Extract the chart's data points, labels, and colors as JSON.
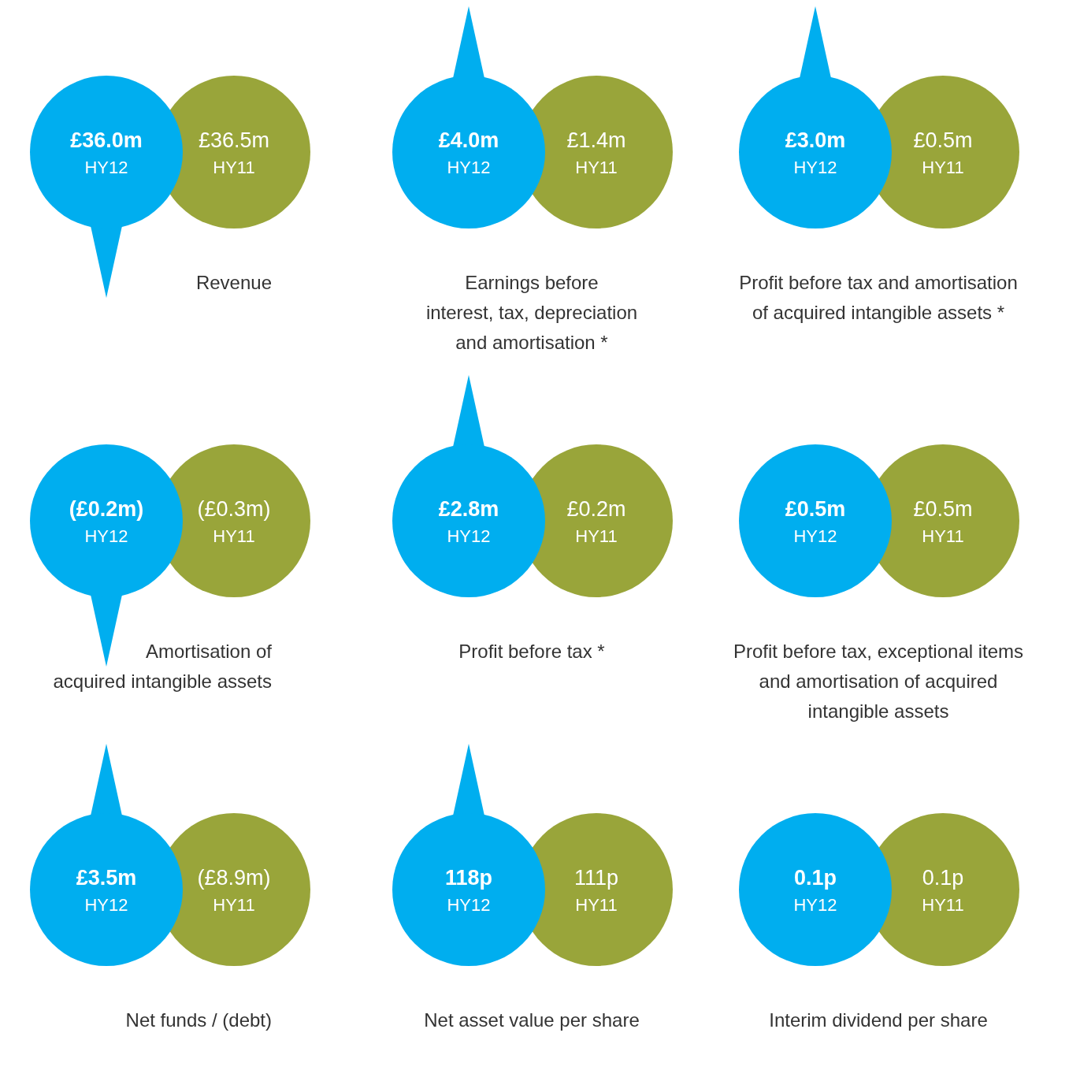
{
  "chart_data": [
    {
      "type": "other",
      "title": "Revenue",
      "categories": [
        "HY12",
        "HY11"
      ],
      "values": [
        36.0,
        36.5
      ],
      "value_labels": [
        "£36.0m",
        "£36.5m"
      ],
      "colors": [
        "#00aeef",
        "#99a53a"
      ]
    },
    {
      "type": "other",
      "title": "Earnings before\ninterest, tax, depreciation\nand amortisation *",
      "categories": [
        "HY12",
        "HY11"
      ],
      "values": [
        4.0,
        1.4
      ],
      "value_labels": [
        "£4.0m",
        "£1.4m"
      ],
      "colors": [
        "#00aeef",
        "#99a53a"
      ]
    },
    {
      "type": "other",
      "title": "Profit before tax and amortisation\nof acquired intangible assets *",
      "categories": [
        "HY12",
        "HY11"
      ],
      "values": [
        3.0,
        0.5
      ],
      "value_labels": [
        "£3.0m",
        "£0.5m"
      ],
      "colors": [
        "#00aeef",
        "#99a53a"
      ]
    },
    {
      "type": "other",
      "title": "Amortisation of\nacquired intangible assets",
      "categories": [
        "HY12",
        "HY11"
      ],
      "values": [
        -0.2,
        -0.3
      ],
      "value_labels": [
        "(£0.2m)",
        "(£0.3m)"
      ],
      "colors": [
        "#00aeef",
        "#99a53a"
      ]
    },
    {
      "type": "other",
      "title": "Profit before tax *",
      "categories": [
        "HY12",
        "HY11"
      ],
      "values": [
        2.8,
        0.2
      ],
      "value_labels": [
        "£2.8m",
        "£0.2m"
      ],
      "colors": [
        "#00aeef",
        "#99a53a"
      ]
    },
    {
      "type": "other",
      "title": "Profit before tax, exceptional items\nand amortisation of acquired\nintangible assets",
      "categories": [
        "HY12",
        "HY11"
      ],
      "values": [
        0.5,
        0.5
      ],
      "value_labels": [
        "£0.5m",
        "£0.5m"
      ],
      "colors": [
        "#00aeef",
        "#99a53a"
      ]
    },
    {
      "type": "other",
      "title": "Net funds / (debt)",
      "categories": [
        "HY12",
        "HY11"
      ],
      "values": [
        3.5,
        -8.9
      ],
      "value_labels": [
        "£3.5m",
        "(£8.9m)"
      ],
      "colors": [
        "#00aeef",
        "#99a53a"
      ]
    },
    {
      "type": "other",
      "title": "Net asset value per share",
      "categories": [
        "HY12",
        "HY11"
      ],
      "values": [
        118,
        111
      ],
      "value_labels": [
        "118p",
        "111p"
      ],
      "colors": [
        "#00aeef",
        "#99a53a"
      ]
    },
    {
      "type": "other",
      "title": "Interim dividend per share",
      "categories": [
        "HY12",
        "HY11"
      ],
      "values": [
        0.1,
        0.1
      ],
      "value_labels": [
        "0.1p",
        "0.1p"
      ],
      "colors": [
        "#00aeef",
        "#99a53a"
      ]
    }
  ]
}
